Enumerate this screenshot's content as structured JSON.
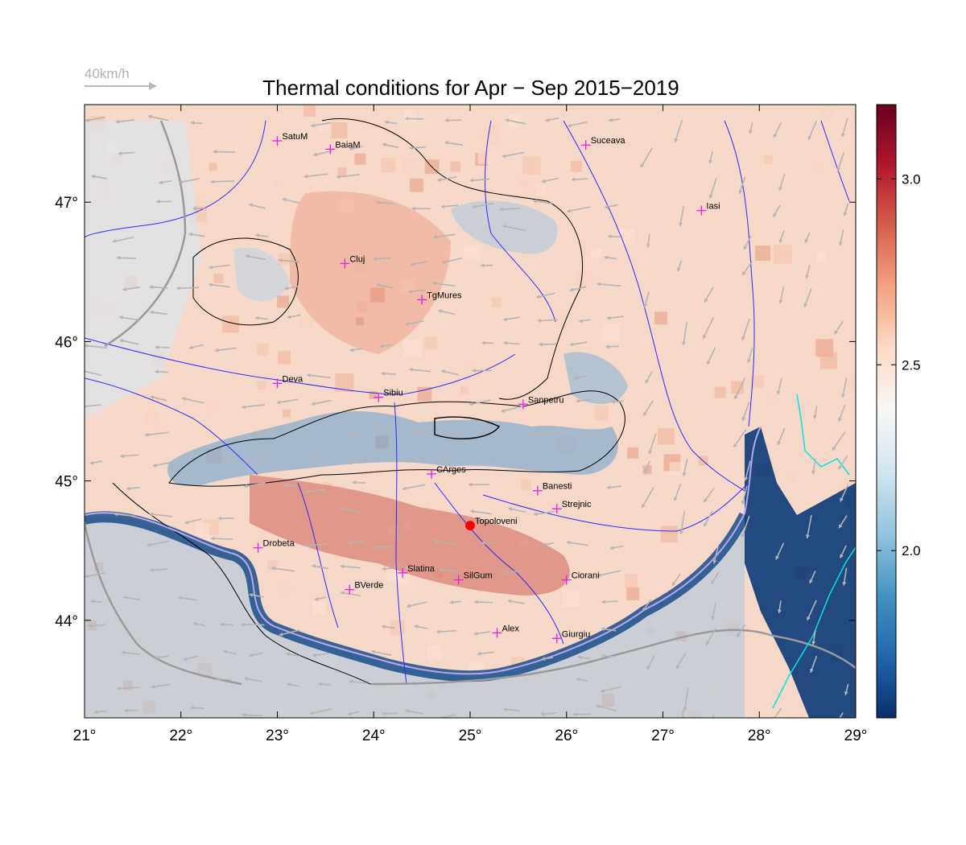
{
  "title": "Thermal conditions for Apr − Sep  2015−2019",
  "wind_scale_label": "40km/h",
  "map": {
    "lon_range": [
      21,
      29
    ],
    "lat_range": [
      43.3,
      47.7
    ],
    "lon_ticks": [
      {
        "value": 21,
        "label": "21°"
      },
      {
        "value": 22,
        "label": "22°"
      },
      {
        "value": 23,
        "label": "23°"
      },
      {
        "value": 24,
        "label": "24°"
      },
      {
        "value": 25,
        "label": "25°"
      },
      {
        "value": 26,
        "label": "26°"
      },
      {
        "value": 27,
        "label": "27°"
      },
      {
        "value": 28,
        "label": "28°"
      },
      {
        "value": 29,
        "label": "29°"
      }
    ],
    "lat_ticks": [
      {
        "value": 44,
        "label": "44°"
      },
      {
        "value": 45,
        "label": "45°"
      },
      {
        "value": 46,
        "label": "46°"
      },
      {
        "value": 47,
        "label": "47°"
      }
    ]
  },
  "colorbar": {
    "range": [
      1.55,
      3.2
    ],
    "ticks": [
      {
        "value": 2.0,
        "label": "2.0"
      },
      {
        "value": 2.5,
        "label": "2.5"
      },
      {
        "value": 3.0,
        "label": "3.0"
      }
    ],
    "colors": [
      "#08306b",
      "#2166ac",
      "#4393c3",
      "#92c5de",
      "#d1e5f0",
      "#f7f7f7",
      "#fddbc7",
      "#f4a582",
      "#d6604d",
      "#b2182b",
      "#67001f"
    ]
  },
  "cities": [
    {
      "name": "SatuM",
      "lon": 23.0,
      "lat": 47.44
    },
    {
      "name": "BaiaM",
      "lon": 23.55,
      "lat": 47.38
    },
    {
      "name": "Suceava",
      "lon": 26.2,
      "lat": 47.41
    },
    {
      "name": "Iasi",
      "lon": 27.4,
      "lat": 46.94
    },
    {
      "name": "Cluj",
      "lon": 23.7,
      "lat": 46.56
    },
    {
      "name": "TgMures",
      "lon": 24.5,
      "lat": 46.3
    },
    {
      "name": "Deva",
      "lon": 23.0,
      "lat": 45.7
    },
    {
      "name": "Sibiu",
      "lon": 24.05,
      "lat": 45.6
    },
    {
      "name": "Sanpetru",
      "lon": 25.55,
      "lat": 45.55
    },
    {
      "name": "CArges",
      "lon": 24.6,
      "lat": 45.05
    },
    {
      "name": "Banesti",
      "lon": 25.7,
      "lat": 44.93
    },
    {
      "name": "Strejnic",
      "lon": 25.9,
      "lat": 44.8
    },
    {
      "name": "Topoloveni",
      "lon": 25.0,
      "lat": 44.68,
      "highlight": true
    },
    {
      "name": "Drobeta",
      "lon": 22.8,
      "lat": 44.52
    },
    {
      "name": "Slatina",
      "lon": 24.3,
      "lat": 44.34
    },
    {
      "name": "SilGum",
      "lon": 24.88,
      "lat": 44.29
    },
    {
      "name": "BVerde",
      "lon": 23.75,
      "lat": 44.22
    },
    {
      "name": "Ciorani",
      "lon": 26.0,
      "lat": 44.29
    },
    {
      "name": "Alex",
      "lon": 25.28,
      "lat": 43.91
    },
    {
      "name": "Giurgiu",
      "lon": 25.9,
      "lat": 43.87
    }
  ]
}
